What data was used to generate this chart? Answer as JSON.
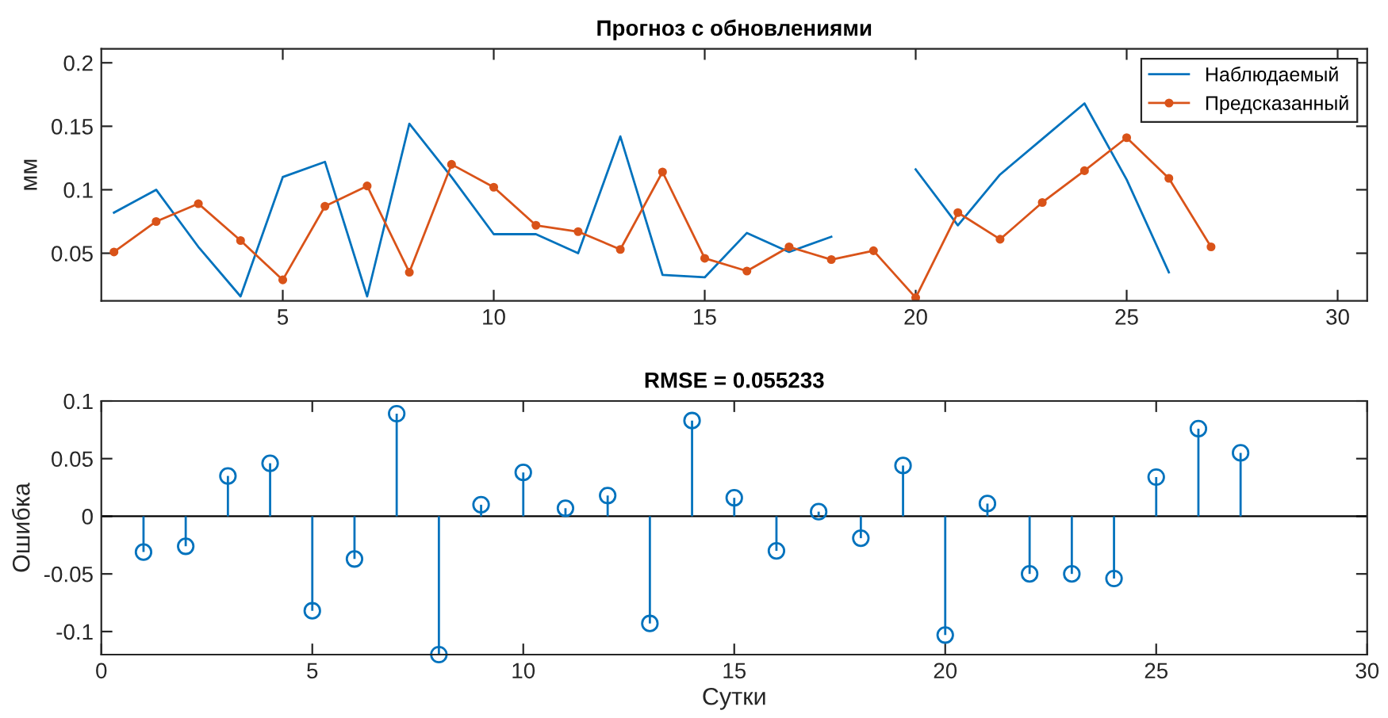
{
  "chart_data": [
    {
      "type": "line",
      "title": "Прогноз с обновлениями",
      "ylabel": "мм",
      "x": [
        1,
        2,
        3,
        4,
        5,
        6,
        7,
        8,
        9,
        10,
        11,
        12,
        13,
        14,
        15,
        16,
        17,
        18,
        19,
        20,
        21,
        22,
        23,
        24,
        25,
        26,
        27
      ],
      "series": [
        {
          "name": "Наблюдаемый",
          "color": "#0072bd",
          "marker": "none",
          "values": [
            0.082,
            0.1,
            0.055,
            0.016,
            0.11,
            0.122,
            0.016,
            0.152,
            0.11,
            0.065,
            0.065,
            0.05,
            0.142,
            0.033,
            0.031,
            0.066,
            0.051,
            0.063,
            null,
            0.116,
            0.072,
            0.112,
            0.14,
            0.168,
            0.108,
            0.035,
            null
          ]
        },
        {
          "name": "Предсказанный",
          "color": "#d95319",
          "marker": "circle",
          "values": [
            0.051,
            0.075,
            0.089,
            0.06,
            0.029,
            0.087,
            0.103,
            0.035,
            0.12,
            0.102,
            0.072,
            0.067,
            0.053,
            0.114,
            0.046,
            0.036,
            0.055,
            0.045,
            0.052,
            0.015,
            0.082,
            0.061,
            0.09,
            0.115,
            0.141,
            0.109,
            0.055
          ]
        }
      ],
      "xlim": [
        0.7,
        30.7
      ],
      "ylim": [
        0.0125,
        0.211
      ],
      "xticks": [
        5,
        10,
        15,
        20,
        25,
        30
      ],
      "yticks": [
        0.05,
        0.1,
        0.15,
        0.2
      ],
      "legend": "top right",
      "grid": false,
      "line_style": "solid"
    },
    {
      "type": "lollipop",
      "title": "RMSE = 0.055233",
      "xlabel": "Сутки",
      "ylabel": "Ошибка",
      "x": [
        1,
        2,
        3,
        4,
        5,
        6,
        7,
        8,
        9,
        10,
        11,
        12,
        13,
        14,
        15,
        16,
        17,
        18,
        19,
        20,
        21,
        22,
        23,
        24,
        25,
        26,
        27
      ],
      "series": [
        {
          "color": "#0072bd",
          "values": [
            -0.031,
            -0.026,
            0.035,
            0.046,
            -0.082,
            -0.037,
            0.089,
            -0.12,
            0.01,
            0.038,
            0.007,
            0.018,
            -0.093,
            0.083,
            0.016,
            -0.03,
            0.004,
            -0.019,
            0.044,
            -0.103,
            0.011,
            -0.05,
            -0.05,
            -0.054,
            0.034,
            0.076,
            0.055
          ]
        }
      ],
      "xlim": [
        0,
        30
      ],
      "ylim": [
        -0.12,
        0.1
      ],
      "xticks": [
        0,
        5,
        10,
        15,
        20,
        25,
        30
      ],
      "yticks": [
        -0.1,
        -0.05,
        0,
        0.05,
        0.1
      ],
      "marker": "circle",
      "ref_lines": [
        {
          "axis": "y",
          "value": 0,
          "color": "#000000"
        }
      ],
      "legend": false
    }
  ]
}
